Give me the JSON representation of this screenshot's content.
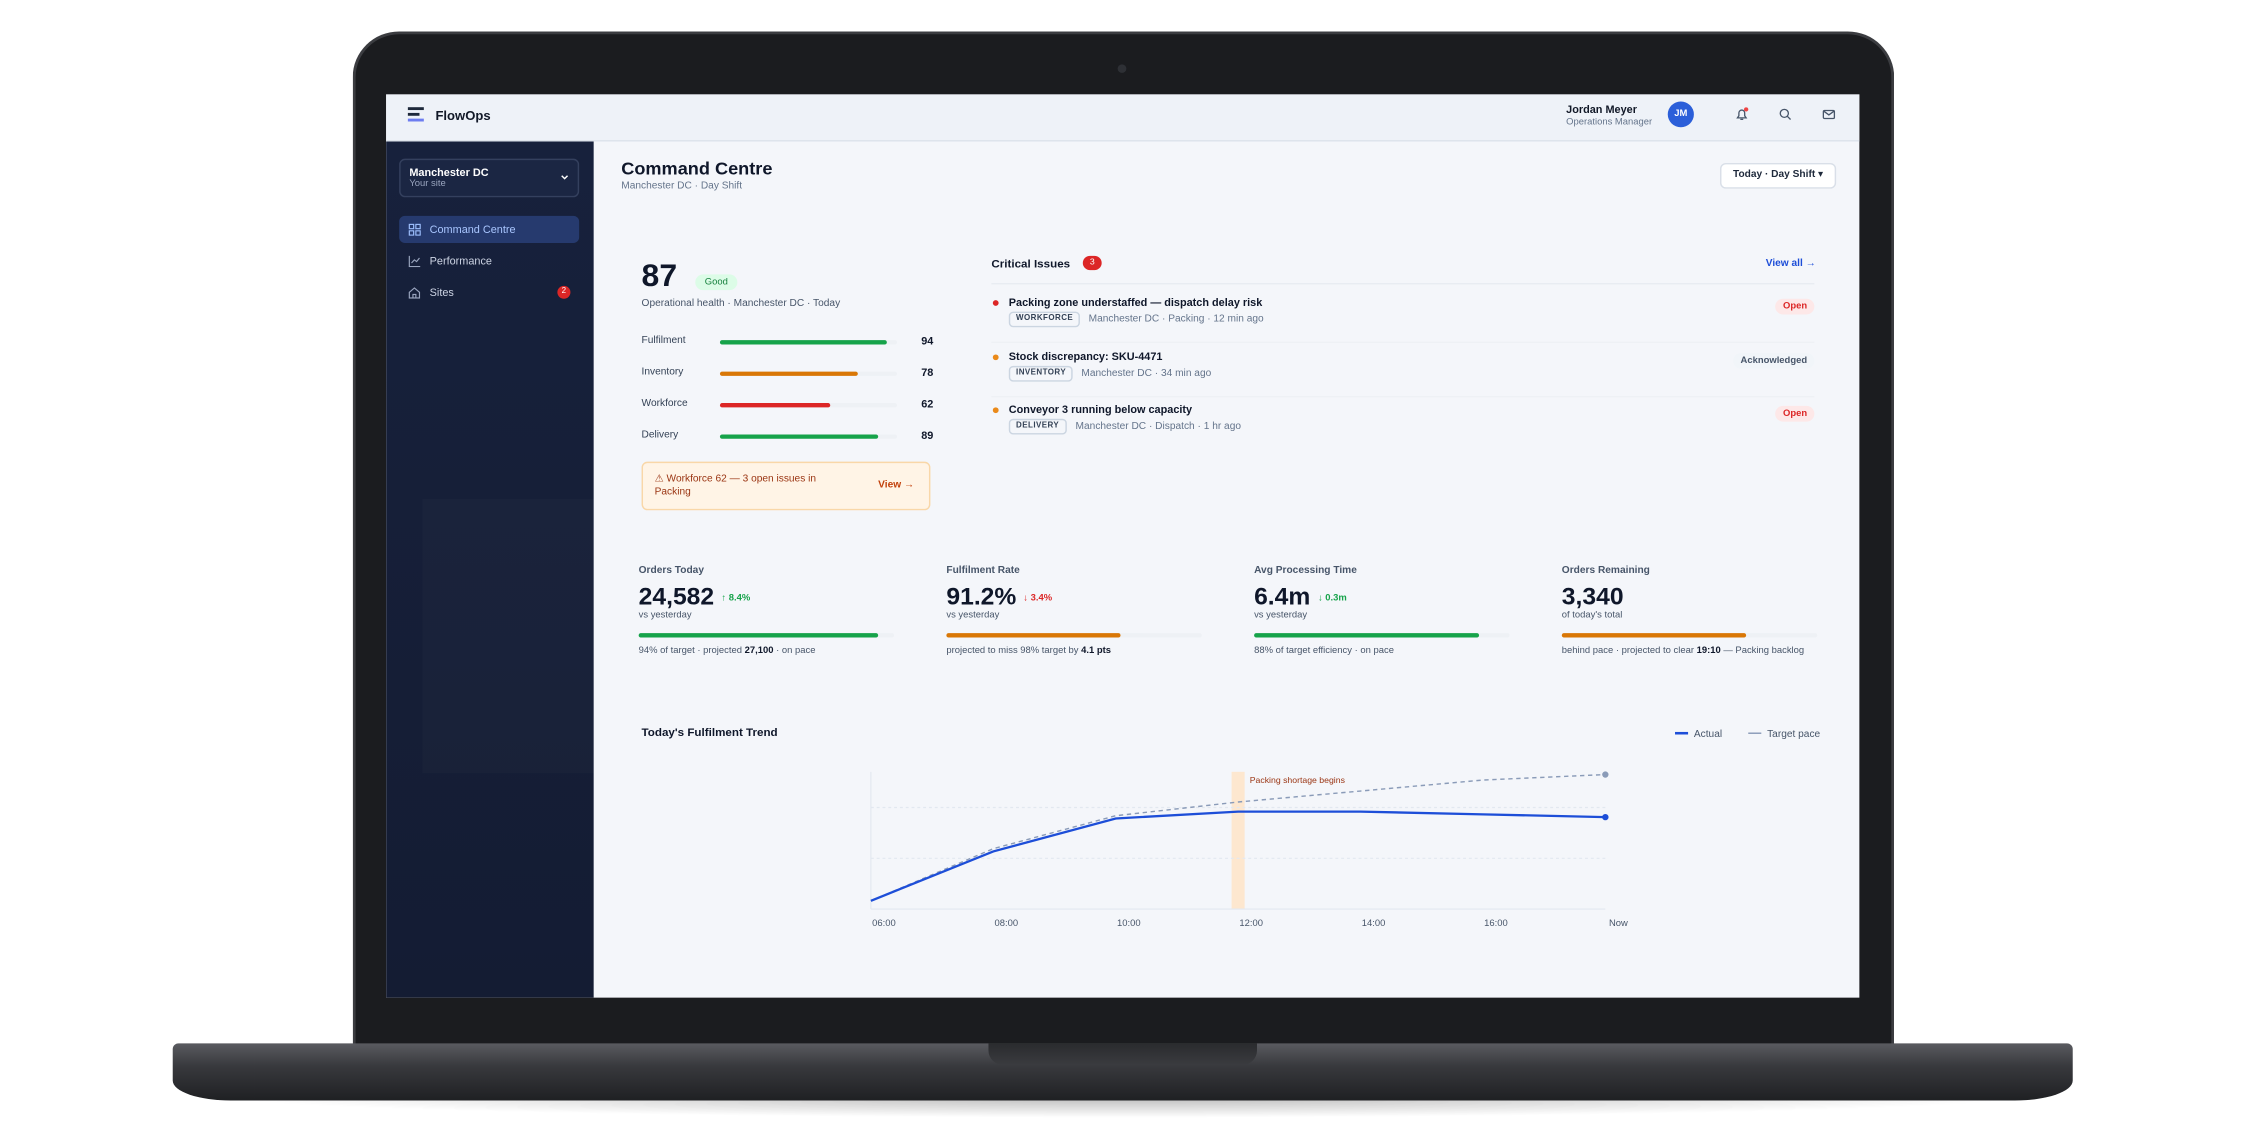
{
  "app": {
    "name": "FlowOps"
  },
  "user": {
    "name": "Jordan Meyer",
    "role": "Operations Manager",
    "initials": "JM"
  },
  "sidebar": {
    "site": {
      "name": "Manchester DC",
      "caption": "Your site"
    },
    "nav": [
      {
        "label": "Command Centre",
        "active": true
      },
      {
        "label": "Performance"
      },
      {
        "label": "Sites",
        "badge": 2
      }
    ]
  },
  "header": {
    "title": "Command Centre",
    "subtitle": "Manchester DC · Day Shift",
    "period": "Today · Day Shift ▾"
  },
  "health": {
    "score": 87,
    "status": "Good",
    "caption": "Operational health · Manchester DC · Today",
    "metrics": [
      {
        "label": "Fulfilment",
        "value": 94,
        "color": "#16a34a"
      },
      {
        "label": "Inventory",
        "value": 78,
        "color": "#d97706"
      },
      {
        "label": "Workforce",
        "value": 62,
        "color": "#dc2626"
      },
      {
        "label": "Delivery",
        "value": 89,
        "color": "#16a34a"
      }
    ],
    "alert": {
      "text": "⚠ Workforce 62 — 3 open issues in Packing",
      "action": "View →"
    }
  },
  "issues": {
    "title": "Critical Issues",
    "count": 3,
    "action": "View all →",
    "items": [
      {
        "title": "Packing zone understaffed — dispatch delay risk",
        "tag": "WORKFORCE",
        "meta": "Manchester DC · Packing · 12 min ago",
        "status": "Open",
        "color": "#dc2626"
      },
      {
        "title": "Stock discrepancy: SKU-4471",
        "tag": "INVENTORY",
        "meta": "Manchester DC · 34 min ago",
        "status": "Acknowledged",
        "color": "#ea8a1a"
      },
      {
        "title": "Conveyor 3 running below capacity",
        "tag": "DELIVERY",
        "meta": "Manchester DC · Dispatch · 1 hr ago",
        "status": "Open",
        "color": "#ea8a1a"
      }
    ]
  },
  "kpis": [
    {
      "label": "Orders Today",
      "value": "24,582",
      "delta": "↑ 8.4%",
      "delta_color": "#16a34a",
      "compare": "vs yesterday",
      "progress": 94,
      "bar_color": "#16a34a",
      "note": [
        "94% of target · projected ",
        "27,100",
        " · on pace"
      ]
    },
    {
      "label": "Fulfilment Rate",
      "value": "91.2%",
      "delta": "↓ 3.4%",
      "delta_color": "#dc2626",
      "compare": "vs yesterday",
      "progress": 68,
      "bar_color": "#d97706",
      "note": [
        "projected to miss 98% target by ",
        "4.1 pts"
      ]
    },
    {
      "label": "Avg Processing Time",
      "value": "6.4m",
      "delta": "↓ 0.3m",
      "delta_color": "#16a34a",
      "compare": "vs yesterday",
      "progress": 88,
      "bar_color": "#16a34a",
      "note": [
        "88% of target efficiency · on pace"
      ]
    },
    {
      "label": "Orders Remaining",
      "value": "3,340",
      "compare": "of today's total",
      "progress": 72,
      "bar_color": "#d97706",
      "note": [
        "behind pace · projected to clear ",
        "19:10",
        " — Packing backlog"
      ]
    }
  ],
  "trend": {
    "type": "line",
    "title": "Today's Fulfilment Trend",
    "categories": [
      "06:00",
      "08:00",
      "10:00",
      "12:00",
      "14:00",
      "16:00",
      "Now"
    ],
    "series": [
      {
        "name": "Actual",
        "color": "#1d4ed8",
        "values": [
          6,
          42,
          66,
          71,
          71,
          69,
          67
        ]
      },
      {
        "name": "Target pace",
        "color": "#8a9bb8",
        "dashed": true,
        "values": [
          6,
          44,
          68,
          78,
          86,
          94,
          98
        ]
      }
    ],
    "ylim": [
      0,
      100
    ],
    "yticks": [
      0,
      37,
      74
    ],
    "grid": true,
    "annotations": [
      {
        "label": "Packing shortage begins",
        "x": "12:00",
        "color": "#fde7cf"
      }
    ]
  }
}
